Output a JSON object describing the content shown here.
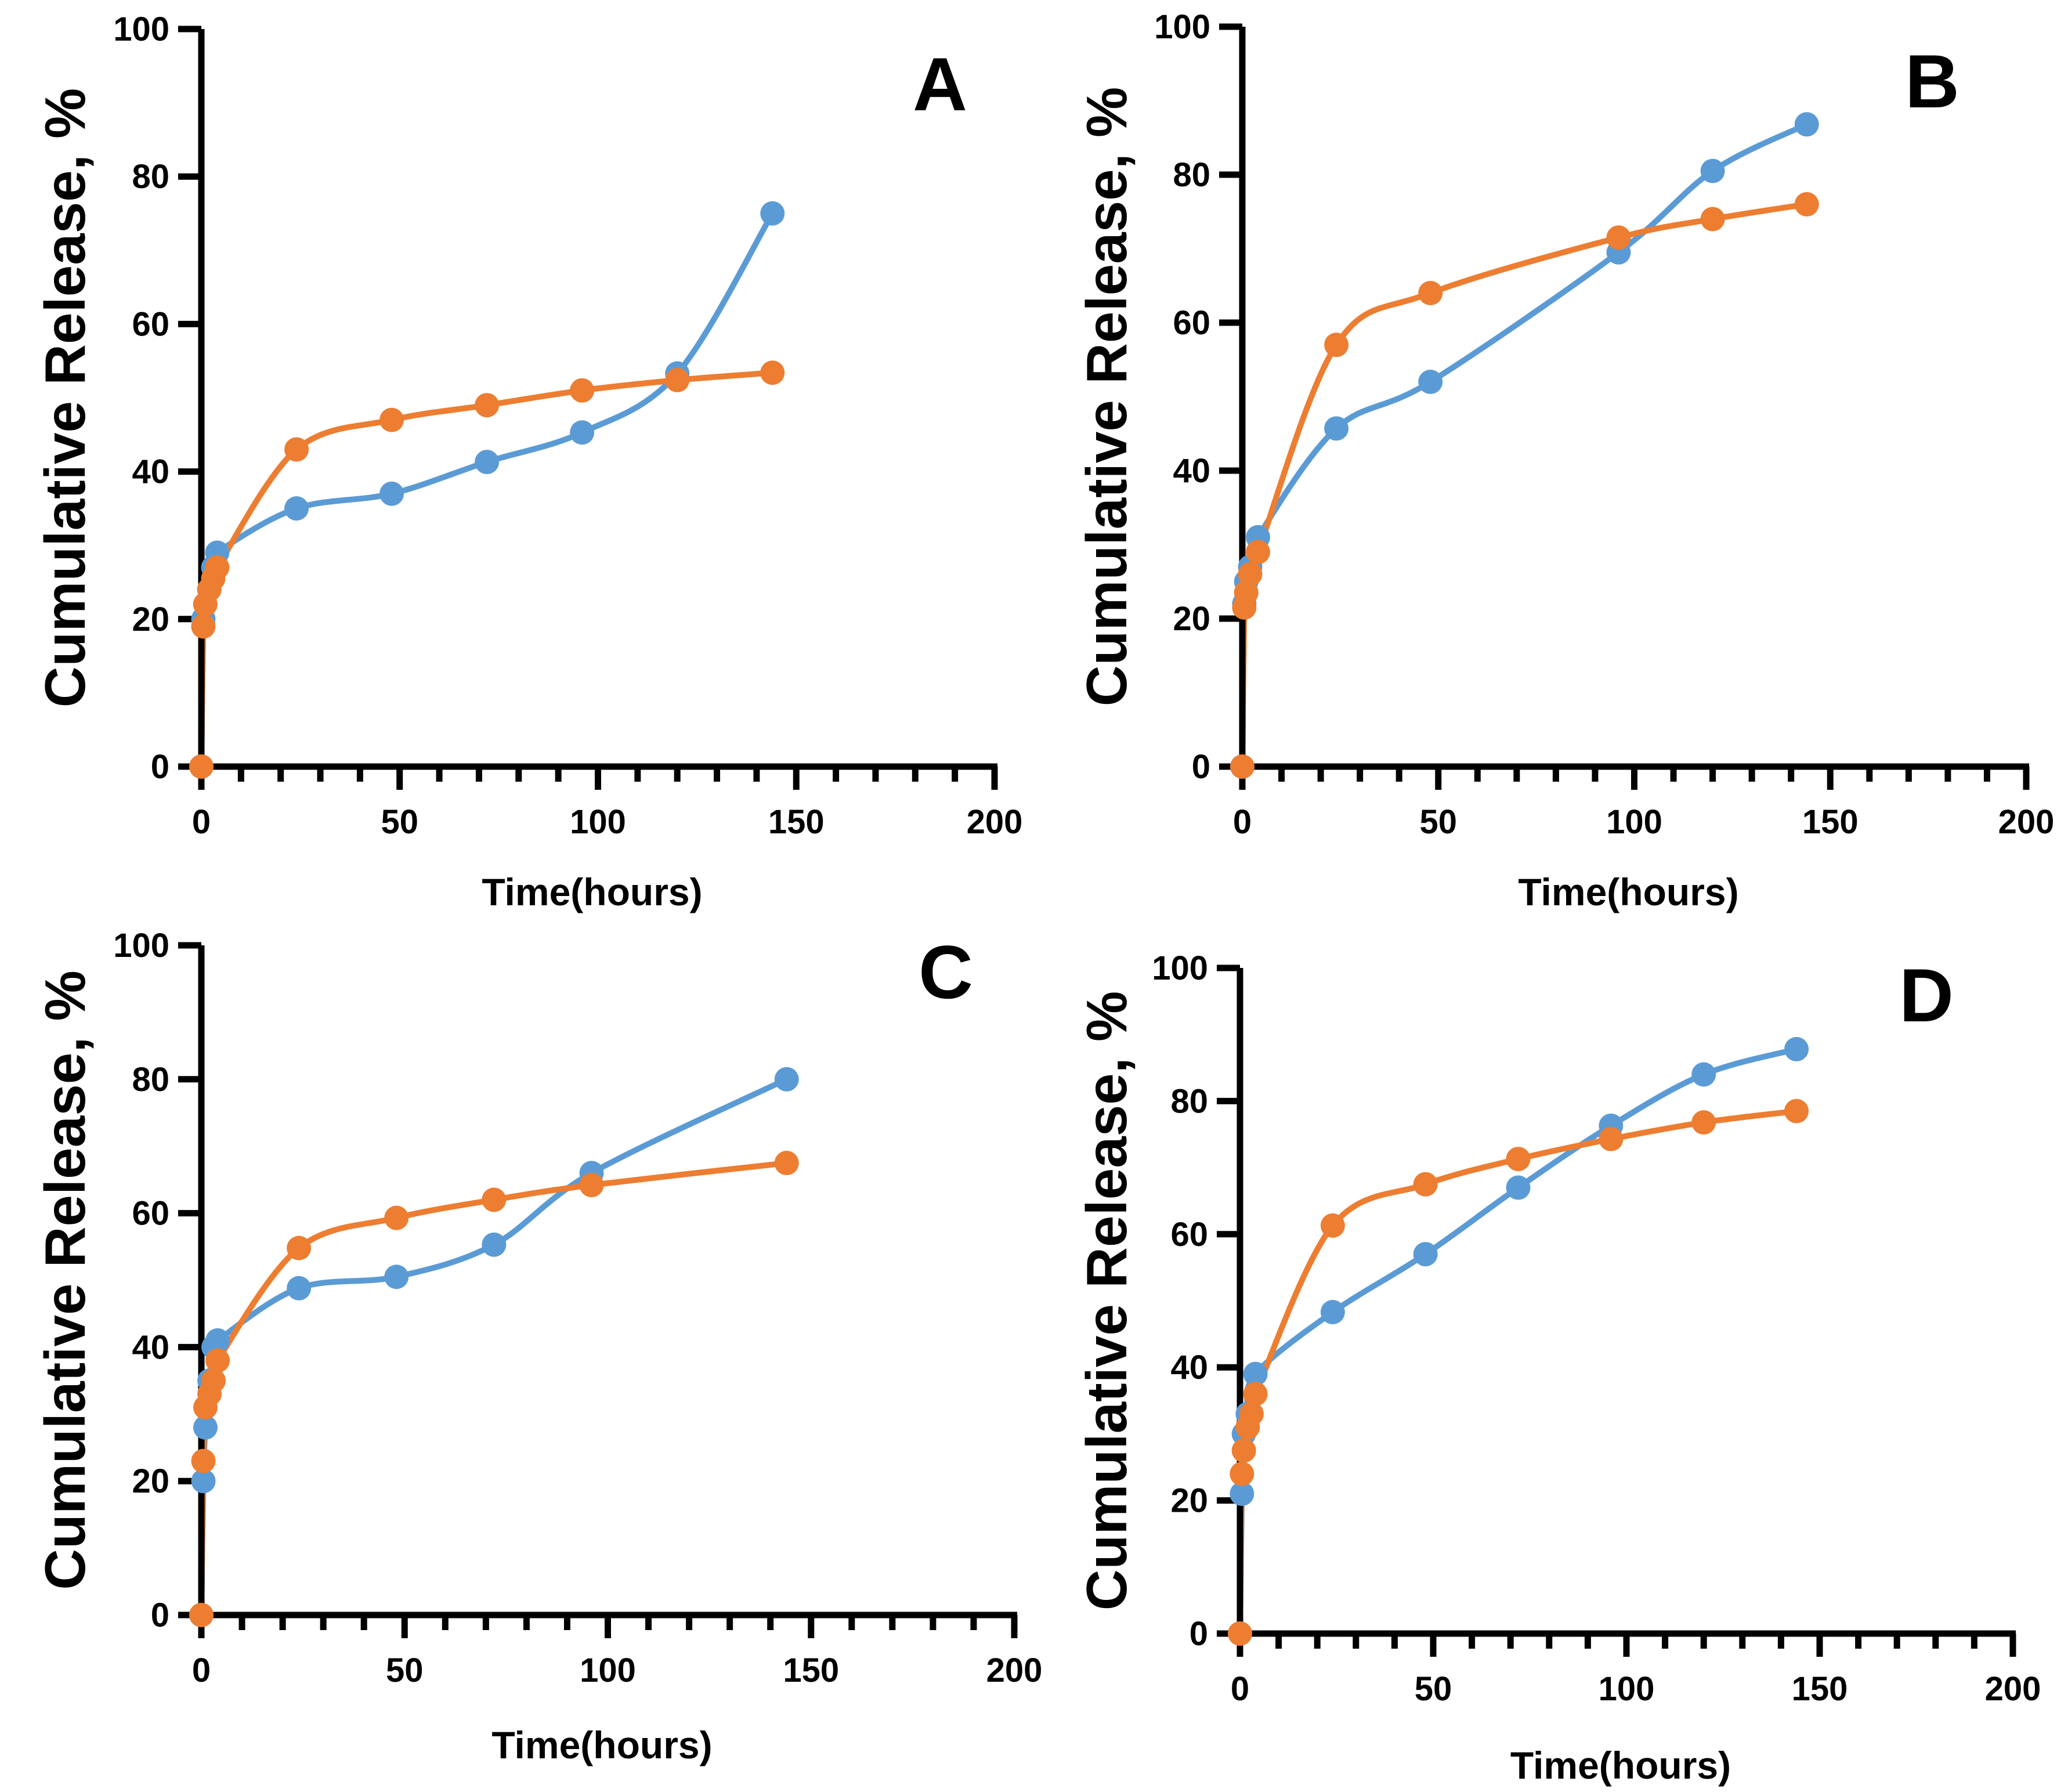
{
  "chart_data": [
    {
      "type": "line",
      "panel_label": "A",
      "xlabel": "Time(hours)",
      "ylabel": "Cumulative Release, %",
      "xlim": [
        0,
        200
      ],
      "ylim": [
        0,
        100
      ],
      "xticks": [
        0,
        50,
        100,
        150,
        200
      ],
      "yticks": [
        0,
        20,
        40,
        60,
        80,
        100
      ],
      "series": [
        {
          "name": "blue",
          "color": "#5b9bd5",
          "x": [
            0,
            0.5,
            1,
            2,
            3,
            4,
            24,
            48,
            72,
            96,
            120,
            144
          ],
          "y": [
            0,
            20,
            22,
            24,
            27,
            29,
            35,
            37,
            41.3,
            45.3,
            53.3,
            75
          ]
        },
        {
          "name": "orange",
          "color": "#ed7d31",
          "x": [
            0,
            0.5,
            1,
            2,
            3,
            4,
            24,
            48,
            72,
            96,
            120,
            144
          ],
          "y": [
            0,
            19,
            22,
            24,
            25.5,
            27,
            43,
            47,
            49,
            51,
            52.4,
            53.4
          ]
        }
      ]
    },
    {
      "type": "line",
      "panel_label": "B",
      "xlabel": "Time(hours)",
      "ylabel": "Cumulative Release, %",
      "xlim": [
        0,
        200
      ],
      "ylim": [
        0,
        100
      ],
      "xticks": [
        0,
        50,
        100,
        150,
        200
      ],
      "yticks": [
        0,
        20,
        40,
        60,
        80,
        100
      ],
      "series": [
        {
          "name": "blue",
          "color": "#5b9bd5",
          "x": [
            0,
            0.5,
            1,
            2,
            4,
            24,
            48,
            96,
            120,
            144
          ],
          "y": [
            0,
            22,
            25,
            27,
            31,
            45.7,
            52,
            69.5,
            80.5,
            86.8
          ]
        },
        {
          "name": "orange",
          "color": "#ed7d31",
          "x": [
            0,
            0.5,
            1,
            2,
            4,
            24,
            48,
            96,
            120,
            144
          ],
          "y": [
            0,
            21.5,
            23.5,
            26,
            29,
            57,
            64,
            71.5,
            74,
            76
          ]
        }
      ]
    },
    {
      "type": "line",
      "panel_label": "C",
      "xlabel": "Time(hours)",
      "ylabel": "Cumulative Release, %",
      "xlim": [
        0,
        200
      ],
      "ylim": [
        0,
        100
      ],
      "xticks": [
        0,
        50,
        100,
        150,
        200
      ],
      "yticks": [
        0,
        20,
        40,
        60,
        80,
        100
      ],
      "series": [
        {
          "name": "blue",
          "color": "#5b9bd5",
          "x": [
            0,
            0.5,
            1,
            2,
            3,
            4,
            24,
            48,
            72,
            96,
            144
          ],
          "y": [
            0,
            20,
            28,
            35,
            40,
            41,
            48.8,
            50.5,
            55.3,
            66,
            80
          ]
        },
        {
          "name": "orange",
          "color": "#ed7d31",
          "x": [
            0,
            0.5,
            1,
            2,
            3,
            4,
            24,
            48,
            72,
            96,
            144
          ],
          "y": [
            0,
            23,
            31,
            33,
            35,
            38,
            54.8,
            59.3,
            62,
            64.2,
            67.5
          ]
        }
      ]
    },
    {
      "type": "line",
      "panel_label": "D",
      "xlabel": "Time(hours)",
      "ylabel": "Cumulative Release, %",
      "xlim": [
        0,
        200
      ],
      "ylim": [
        0,
        100
      ],
      "xticks": [
        0,
        50,
        100,
        150,
        200
      ],
      "yticks": [
        0,
        20,
        40,
        60,
        80,
        100
      ],
      "series": [
        {
          "name": "blue",
          "color": "#5b9bd5",
          "x": [
            0,
            0.5,
            1,
            2,
            4,
            24,
            48,
            72,
            96,
            120,
            144
          ],
          "y": [
            0,
            21,
            30,
            33,
            39,
            48.3,
            57,
            67,
            76.3,
            84,
            87.8
          ]
        },
        {
          "name": "orange",
          "color": "#ed7d31",
          "x": [
            0,
            0.5,
            1,
            2,
            3,
            4,
            24,
            48,
            72,
            96,
            120,
            144
          ],
          "y": [
            0,
            24,
            27.5,
            31,
            33,
            36,
            61.3,
            67.5,
            71.3,
            74.3,
            76.8,
            78.5
          ]
        }
      ]
    }
  ]
}
